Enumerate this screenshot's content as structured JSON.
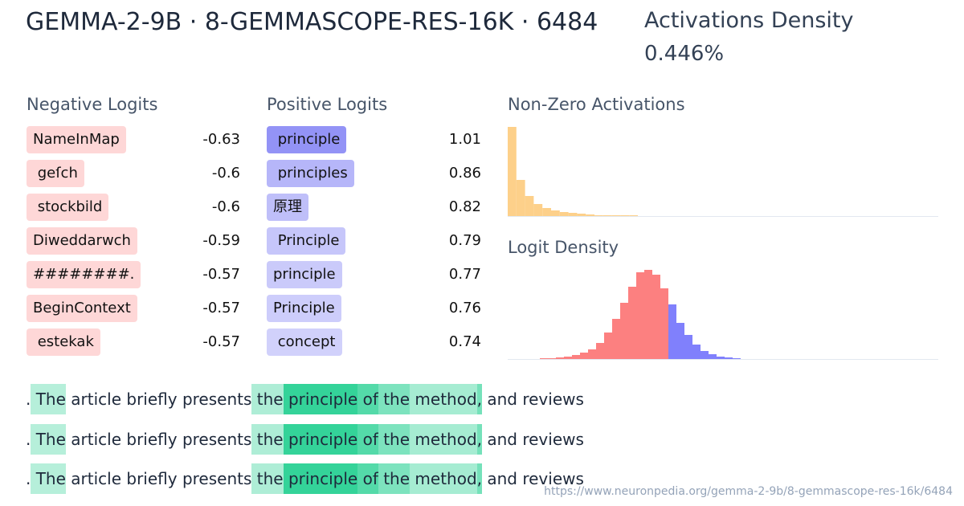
{
  "header": {
    "title": "GEMMA-2-9B · 8-GEMMASCOPE-RES-16K · 6484",
    "density_label": "Activations Density",
    "density_value": "0.446%"
  },
  "negative_logits": {
    "title": "Negative Logits",
    "color": "#fecaca",
    "tokens": [
      "NameInMap",
      " geſch",
      " stockbild",
      "Diweddarwch",
      "########.",
      "BeginContext",
      " estekak"
    ],
    "values": [
      -0.63,
      -0.6,
      -0.6,
      -0.59,
      -0.57,
      -0.57,
      -0.57
    ]
  },
  "positive_logits": {
    "title": "Positive Logits",
    "color": "#8080f4",
    "tokens": [
      " principle",
      " principles",
      "原理",
      " Principle",
      "principle",
      "Principle",
      " concept"
    ],
    "values": [
      1.01,
      0.86,
      0.82,
      0.79,
      0.77,
      0.76,
      0.74
    ]
  },
  "activations_histogram": {
    "type": "bar",
    "title": "Non-Zero Activations",
    "color": "#fdd08a",
    "values": [
      111,
      45,
      25,
      15,
      10,
      7,
      5,
      4,
      3,
      2,
      1,
      1,
      1,
      1,
      1
    ]
  },
  "logit_density": {
    "type": "bar",
    "title": "Logit Density",
    "series": [
      {
        "color": "#fc8080",
        "values": [
          1,
          1,
          2,
          3,
          5,
          8,
          12,
          20,
          33,
          50,
          70,
          90,
          108,
          111,
          105,
          88
        ]
      },
      {
        "color": "#8080fc",
        "values": [
          68,
          45,
          30,
          18,
          10,
          6,
          3,
          2,
          1
        ]
      }
    ]
  },
  "examples": {
    "color": "#34d399",
    "tokens": [
      ".",
      " The",
      " article",
      " briefly",
      " presents",
      " the",
      " principle",
      " of",
      " the",
      " method",
      ",",
      " and",
      " reviews"
    ],
    "activations": [
      0,
      0.2,
      0,
      0,
      0,
      0.25,
      1,
      0.8,
      0.55,
      0.3,
      0.6,
      0,
      0
    ],
    "count": 3
  },
  "footer": {
    "url": "https://www.neuronpedia.org/gemma-2-9b/8-gemmascope-res-16k/6484"
  }
}
